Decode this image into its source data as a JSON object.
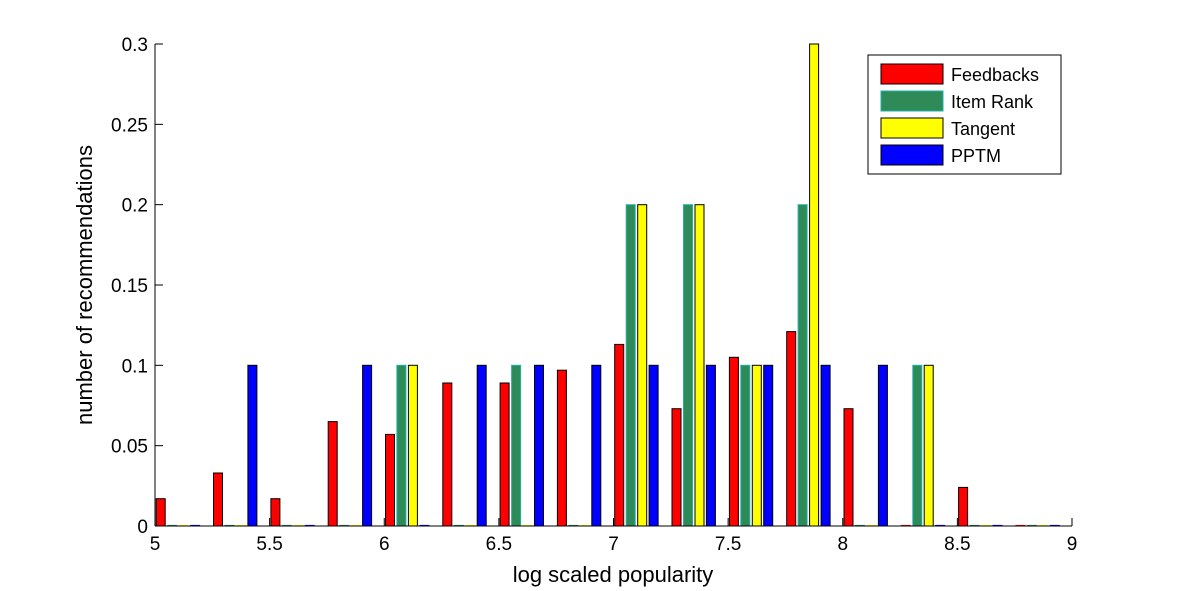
{
  "chart_data": {
    "type": "bar",
    "title": "",
    "xlabel": "log scaled popularity",
    "ylabel": "number of recommendations",
    "xlim": [
      5,
      9
    ],
    "ylim": [
      0,
      0.3
    ],
    "xticks": [
      "5",
      "5.5",
      "6",
      "6.5",
      "7",
      "7.5",
      "8",
      "8.5",
      "9"
    ],
    "yticks": [
      "0",
      "0.05",
      "0.1",
      "0.15",
      "0.2",
      "0.25",
      "0.3"
    ],
    "x": [
      5.1,
      5.35,
      5.6,
      5.85,
      6.1,
      6.35,
      6.6,
      6.85,
      7.1,
      7.35,
      7.6,
      7.85,
      8.1,
      8.35,
      8.6,
      8.85
    ],
    "series": [
      {
        "name": "Feedbacks",
        "color": "#ff0000",
        "values": [
          0.017,
          0.033,
          0.017,
          0.065,
          0.057,
          0.089,
          0.089,
          0.097,
          0.113,
          0.073,
          0.105,
          0.121,
          0.073,
          0,
          0.024,
          0
        ]
      },
      {
        "name": "Item Rank",
        "color": "#2e8b57",
        "values": [
          0,
          0,
          0,
          0,
          0.1,
          0,
          0.1,
          0,
          0.2,
          0.2,
          0.1,
          0.2,
          0,
          0.1,
          0,
          0
        ]
      },
      {
        "name": "Tangent",
        "color": "#ffff00",
        "values": [
          0,
          0,
          0,
          0,
          0.1,
          0,
          0,
          0,
          0.2,
          0.2,
          0.1,
          0.3,
          0,
          0.1,
          0,
          0
        ]
      },
      {
        "name": "PPTM",
        "color": "#0000ff",
        "values": [
          0,
          0.1,
          0,
          0.1,
          0,
          0.1,
          0.1,
          0.1,
          0.1,
          0.1,
          0.1,
          0.1,
          0.1,
          0,
          0,
          0
        ]
      }
    ],
    "legend_position": "top-right",
    "grid": false
  }
}
